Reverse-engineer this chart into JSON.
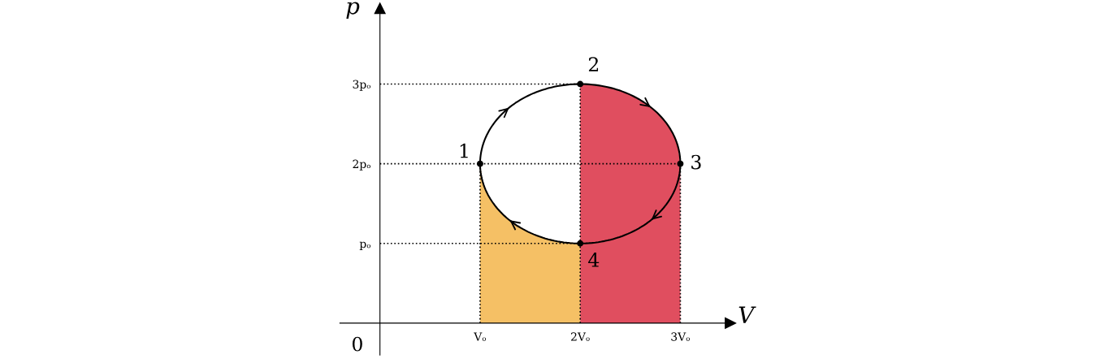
{
  "chart_data": {
    "type": "line",
    "xlabel": "V",
    "ylabel": "p",
    "xlim": [
      -0.4,
      3.5
    ],
    "ylim": [
      -0.4,
      3.95
    ],
    "xticks": [
      {
        "value": 1,
        "label": "Vₒ"
      },
      {
        "value": 2,
        "label": "2Vₒ"
      },
      {
        "value": 3,
        "label": "3Vₒ"
      }
    ],
    "yticks": [
      {
        "value": 1,
        "label": "pₒ"
      },
      {
        "value": 2,
        "label": "2pₒ"
      },
      {
        "value": 3,
        "label": "3pₒ"
      }
    ],
    "grid": false,
    "legend": false,
    "series": [
      {
        "type": "area",
        "color": "#f5c065",
        "x": [
          1,
          1.03,
          1.13,
          1.29,
          1.5,
          1.74,
          2
        ],
        "values": [
          2,
          1.74,
          1.5,
          1.29,
          1.13,
          1.03,
          1
        ]
      },
      {
        "type": "area",
        "color": "#e04e5f",
        "x": [
          2,
          2.26,
          2.5,
          2.71,
          2.87,
          2.97,
          3
        ],
        "values": [
          3,
          2.97,
          2.87,
          2.71,
          2.5,
          2.26,
          2
        ]
      },
      {
        "type": "line",
        "color": "#000000",
        "line_style": "dotted",
        "x": [
          0,
          2
        ],
        "values": [
          3,
          3
        ]
      },
      {
        "type": "line",
        "color": "#000000",
        "line_style": "dotted",
        "x": [
          0,
          3
        ],
        "values": [
          2,
          2
        ]
      },
      {
        "type": "line",
        "color": "#000000",
        "line_style": "dotted",
        "x": [
          0,
          2
        ],
        "values": [
          1,
          1
        ]
      },
      {
        "type": "line",
        "color": "#000000",
        "line_style": "dotted",
        "x": [
          1,
          1
        ],
        "values": [
          0,
          2
        ]
      },
      {
        "type": "line",
        "color": "#000000",
        "line_style": "dotted",
        "x": [
          2,
          2
        ],
        "values": [
          0,
          3
        ]
      },
      {
        "type": "line",
        "color": "#000000",
        "line_style": "dotted",
        "x": [
          3,
          3
        ],
        "values": [
          0,
          2
        ]
      },
      {
        "type": "scatter",
        "color": "#000000",
        "marker": "circle",
        "x": [
          1,
          2,
          3,
          2
        ],
        "values": [
          2,
          3,
          2,
          1
        ]
      }
    ],
    "annotations": [
      "0",
      {
        "text": "1",
        "x": 1,
        "y": 2
      },
      {
        "text": "2",
        "x": 2,
        "y": 3
      },
      {
        "text": "3",
        "x": 3,
        "y": 2
      },
      {
        "text": "4",
        "x": 2,
        "y": 1
      }
    ]
  }
}
